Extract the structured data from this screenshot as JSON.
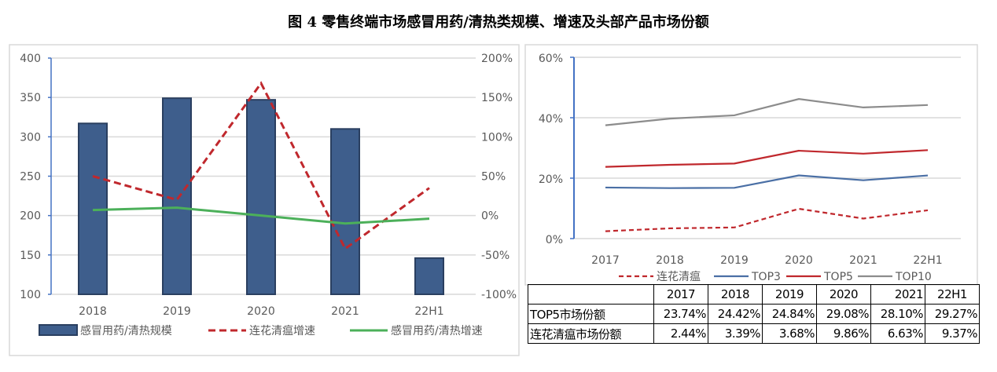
{
  "title": "图 4   零售终端市场感冒用药/清热类规模、增速及头部产品市场份额",
  "chart_data": [
    {
      "type": "bar+line",
      "categories": [
        "2018",
        "2019",
        "2020",
        "2021",
        "22H1"
      ],
      "y_left": {
        "ticks": [
          "400",
          "350",
          "300",
          "250",
          "200",
          "150",
          "100"
        ],
        "range": [
          100,
          400
        ]
      },
      "y_right": {
        "ticks": [
          "200%",
          "150%",
          "100%",
          "50%",
          "0%",
          "-50%",
          "-100%"
        ],
        "range": [
          -100,
          200
        ]
      },
      "grid": true,
      "legend_position": "bottom",
      "series": [
        {
          "name": "感冒用药/清热规模",
          "type": "bar",
          "axis": "left",
          "color": "#3E5E8C",
          "values": [
            317,
            349,
            347,
            310,
            146
          ]
        },
        {
          "name": "连花清瘟增速",
          "type": "line",
          "style": "dashed",
          "axis": "right",
          "color": "#C0282D",
          "values": [
            50,
            20,
            168,
            -42,
            35
          ]
        },
        {
          "name": "感冒用药/清热增速",
          "type": "line",
          "style": "solid",
          "axis": "right",
          "color": "#4CB05A",
          "values": [
            7,
            10,
            0,
            -10,
            -4
          ]
        }
      ]
    },
    {
      "type": "line",
      "categories": [
        "2017",
        "2018",
        "2019",
        "2020",
        "2021",
        "22H1"
      ],
      "y": {
        "ticks": [
          "60%",
          "40%",
          "20%",
          "0%"
        ],
        "range": [
          0,
          60
        ]
      },
      "grid": true,
      "legend_position": "bottom",
      "series": [
        {
          "name": "连花清瘟",
          "style": "dashed",
          "color": "#C0282D",
          "values": [
            2.44,
            3.39,
            3.68,
            9.86,
            6.63,
            9.37
          ]
        },
        {
          "name": "TOP3",
          "style": "solid",
          "color": "#4A6FA5",
          "values": [
            16.9,
            16.7,
            16.8,
            20.9,
            19.3,
            20.9
          ]
        },
        {
          "name": "TOP5",
          "style": "solid",
          "color": "#C0282D",
          "values": [
            23.74,
            24.42,
            24.84,
            29.08,
            28.1,
            29.27
          ]
        },
        {
          "name": "TOP10",
          "style": "solid",
          "color": "#8C8C8C",
          "values": [
            37.5,
            39.7,
            40.8,
            46.2,
            43.4,
            44.2
          ]
        }
      ]
    }
  ],
  "table": {
    "header": [
      "",
      "2017",
      "2018",
      "2019",
      "2020",
      "2021",
      "22H1"
    ],
    "rows": [
      {
        "label": "TOP5市场份额",
        "cells": [
          "23.74%",
          "24.42%",
          "24.84%",
          "29.08%",
          "28.10%",
          "29.27%"
        ]
      },
      {
        "label": "连花清瘟市场份额",
        "cells": [
          "2.44%",
          "3.39%",
          "3.68%",
          "9.86%",
          "6.63%",
          "9.37%"
        ]
      }
    ]
  }
}
